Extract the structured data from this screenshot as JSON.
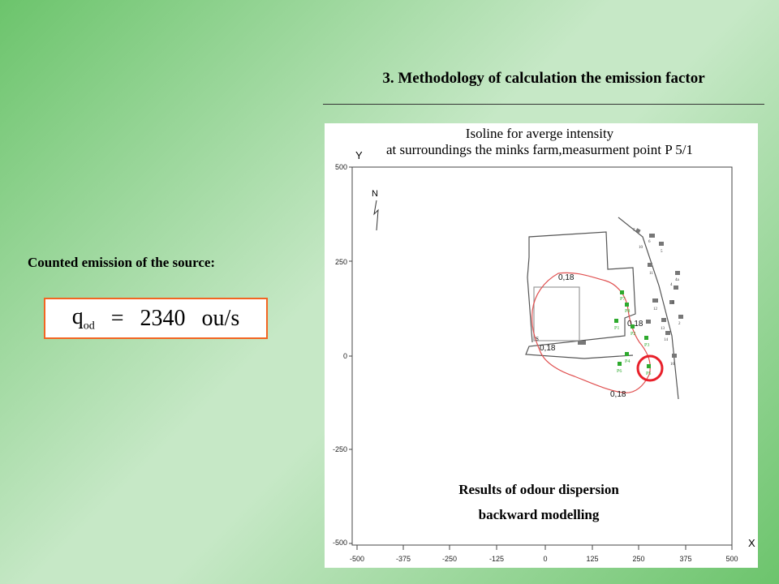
{
  "slide": {
    "title": "3. Methodology of calculation the emission factor",
    "emission_label": "Counted emission of the source:",
    "formula": {
      "q": "q",
      "sub": "od",
      "equals": "=",
      "value": "2340",
      "unit": "ou/s"
    }
  },
  "map": {
    "title_line1": "Isoline for averge intensity",
    "title_line2": "at surroundings the minks farm,measurment point P 5/1",
    "axis_x_label": "X",
    "axis_y_label": "Y",
    "north_label": "N",
    "x_ticks": [
      "-500",
      "-375",
      "-250",
      "-125",
      "0",
      "125",
      "250",
      "375",
      "500"
    ],
    "y_ticks": [
      "500",
      "250",
      "0",
      "-250",
      "-500"
    ],
    "isoline_labels": [
      "0,18",
      "0,18",
      "0,18",
      "0,18"
    ],
    "points": [
      "P1",
      "P2",
      "P3",
      "P4",
      "P5",
      "P6",
      "P7",
      "P8"
    ],
    "building_numbers": [
      "7",
      "6",
      "10",
      "5",
      "11",
      "4a",
      "4",
      "12",
      "3",
      "13",
      "2",
      "14",
      "16"
    ],
    "source_marker": "S",
    "caption_line1": "Results of odour dispersion",
    "caption_line2": "backward modelling",
    "highlight_color": "#e8202a",
    "isoline_color": "#e05050",
    "point_color": "#2eaa2e"
  }
}
